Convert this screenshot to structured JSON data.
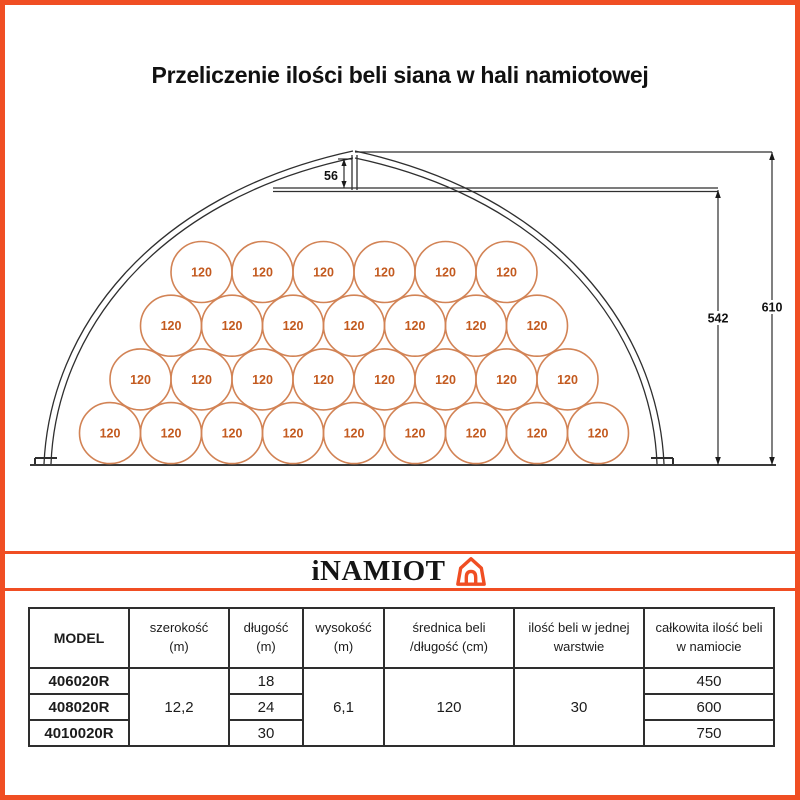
{
  "page": {
    "title": "Przeliczenie ilości beli siana w hali namiotowej",
    "border_color": "#f04e23"
  },
  "diagram": {
    "bale_label": "120",
    "row_counts": [
      6,
      7,
      8,
      9
    ],
    "bales_total": 30,
    "dimensions": {
      "ridge_height": "56",
      "side_height": "542",
      "total_height": "610"
    },
    "colors": {
      "bale_stroke": "#d28355",
      "bale_text": "#c35a1f",
      "tent_stroke": "#2f2f2f"
    }
  },
  "logo": {
    "text": "iNAMIOT",
    "icon": "tent-icon",
    "color": "#f04e23"
  },
  "table": {
    "headers": [
      "MODEL",
      "szerokość\n(m)",
      "długość\n(m)",
      "wysokość\n(m)",
      "średnica beli\n/długość (cm)",
      "ilość beli w jednej\nwarstwie",
      "całkowita ilość beli\nw namiocie"
    ],
    "merged": {
      "szerokosc": "12,2",
      "wysokosc": "6,1",
      "srednica": "120",
      "warstwa": "30"
    },
    "rows": [
      {
        "model": "406020R",
        "dlugosc": "18",
        "calkowita": "450"
      },
      {
        "model": "408020R",
        "dlugosc": "24",
        "calkowita": "600"
      },
      {
        "model": "4010020R",
        "dlugosc": "30",
        "calkowita": "750"
      }
    ]
  }
}
